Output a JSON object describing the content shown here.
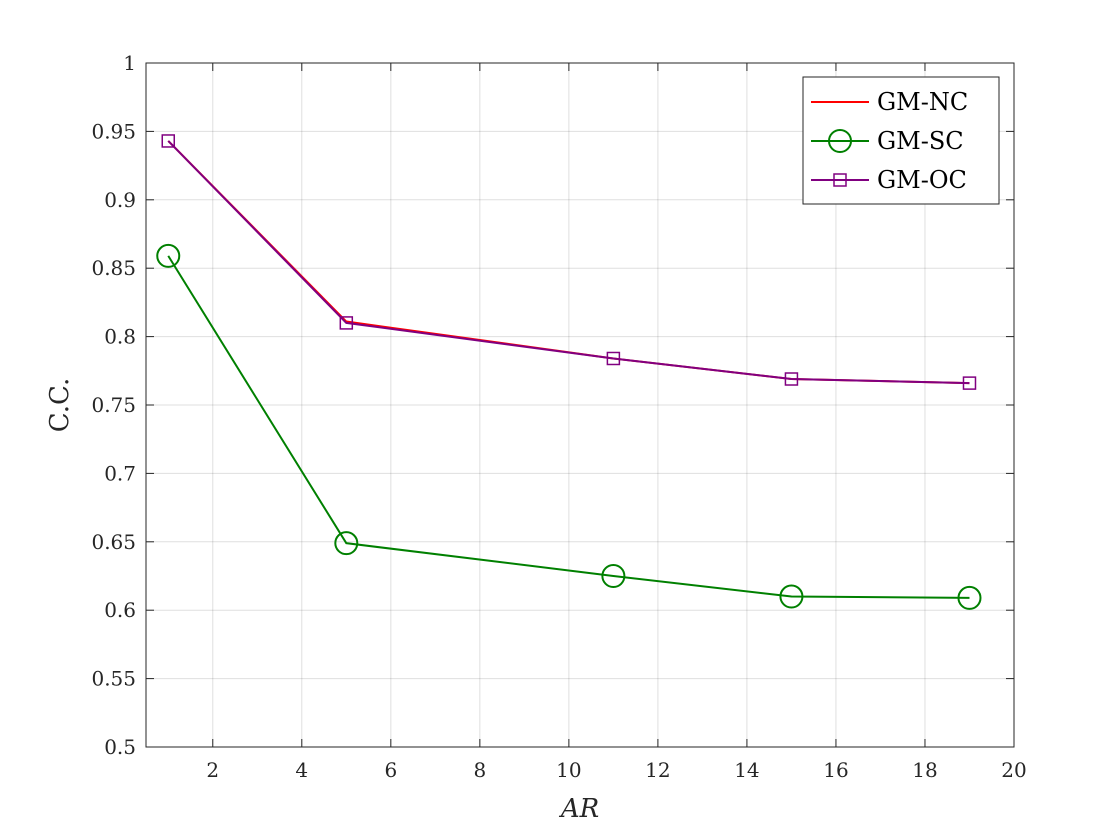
{
  "chart_data": {
    "type": "line",
    "title": "",
    "xlabel": "AR",
    "ylabel": "C.C.",
    "xlim": [
      0.5,
      20
    ],
    "ylim": [
      0.5,
      1
    ],
    "x_ticks": [
      2,
      4,
      6,
      8,
      10,
      12,
      14,
      16,
      18,
      20
    ],
    "x_tick_labels": [
      "2",
      "4",
      "6",
      "8",
      "10",
      "12",
      "14",
      "16",
      "18",
      "20"
    ],
    "y_ticks": [
      0.5,
      0.55,
      0.6,
      0.65,
      0.7,
      0.75,
      0.8,
      0.85,
      0.9,
      0.95,
      1
    ],
    "y_tick_labels": [
      "0.5",
      "0.55",
      "0.6",
      "0.65",
      "0.7",
      "0.75",
      "0.8",
      "0.85",
      "0.9",
      "0.95",
      "1"
    ],
    "grid": true,
    "legend_position": "top-right",
    "x": [
      1,
      5,
      11,
      15,
      19
    ],
    "series": [
      {
        "name": "GM-NC",
        "values": [
          0.943,
          0.811,
          0.784,
          0.769,
          0.766
        ],
        "color": "#ff0000",
        "marker": "none"
      },
      {
        "name": "GM-SC",
        "values": [
          0.859,
          0.649,
          0.625,
          0.61,
          0.609
        ],
        "color": "#008000",
        "marker": "circle"
      },
      {
        "name": "GM-OC",
        "values": [
          0.943,
          0.81,
          0.784,
          0.769,
          0.766
        ],
        "color": "#800080",
        "marker": "square"
      }
    ]
  }
}
